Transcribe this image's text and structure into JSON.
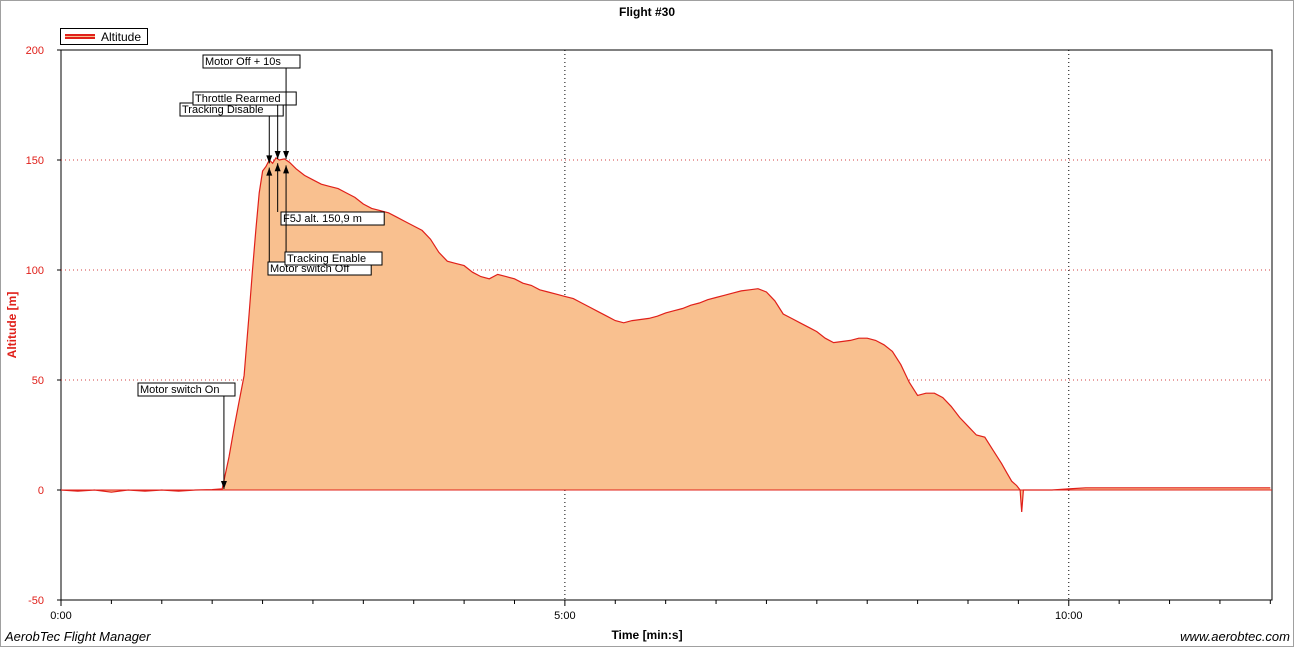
{
  "footer": {
    "app_name": "AerobTec Flight Manager",
    "website": "www.aerobtec.com"
  },
  "chart_data": {
    "type": "area",
    "title": "Flight #30",
    "xlabel": "Time [min:s]",
    "ylabel": "Altitude [m]",
    "legend": {
      "placement": "top-left",
      "entries": [
        "Altitude"
      ]
    },
    "grid": true,
    "xlim": [
      0,
      721
    ],
    "ylim": [
      -50,
      200
    ],
    "x_ticks": [
      {
        "value": 0,
        "label": "0:00"
      },
      {
        "value": 300,
        "label": "5:00"
      },
      {
        "value": 600,
        "label": "10:00"
      }
    ],
    "y_ticks": [
      -50,
      0,
      50,
      100,
      150,
      200
    ],
    "colors": {
      "line": "#e0201a",
      "fill": "#f9c08f",
      "grid": "#d04040"
    },
    "series": [
      {
        "name": "Altitude",
        "points": [
          [
            0,
            0
          ],
          [
            10,
            -0.5
          ],
          [
            20,
            0
          ],
          [
            30,
            -1
          ],
          [
            40,
            0
          ],
          [
            50,
            -0.5
          ],
          [
            60,
            0
          ],
          [
            70,
            -0.5
          ],
          [
            80,
            0
          ],
          [
            90,
            0.2
          ],
          [
            96,
            0.5
          ],
          [
            100,
            15
          ],
          [
            103,
            28
          ],
          [
            106,
            40
          ],
          [
            109,
            52
          ],
          [
            112,
            80
          ],
          [
            114,
            100
          ],
          [
            116,
            118
          ],
          [
            118,
            135
          ],
          [
            120,
            145
          ],
          [
            122,
            147
          ],
          [
            124,
            150
          ],
          [
            126,
            148.5
          ],
          [
            128,
            151
          ],
          [
            130,
            150
          ],
          [
            133,
            150.5
          ],
          [
            136,
            149
          ],
          [
            140,
            146
          ],
          [
            145,
            143
          ],
          [
            150,
            141
          ],
          [
            155,
            139
          ],
          [
            160,
            138
          ],
          [
            165,
            137
          ],
          [
            170,
            135
          ],
          [
            175,
            133
          ],
          [
            180,
            130
          ],
          [
            185,
            128
          ],
          [
            190,
            127
          ],
          [
            195,
            126
          ],
          [
            200,
            124
          ],
          [
            205,
            122
          ],
          [
            210,
            120
          ],
          [
            215,
            118
          ],
          [
            220,
            114
          ],
          [
            225,
            108
          ],
          [
            230,
            104
          ],
          [
            235,
            103
          ],
          [
            240,
            102
          ],
          [
            245,
            99
          ],
          [
            250,
            97
          ],
          [
            255,
            96
          ],
          [
            260,
            98
          ],
          [
            265,
            97
          ],
          [
            270,
            96
          ],
          [
            275,
            94
          ],
          [
            280,
            93
          ],
          [
            285,
            91
          ],
          [
            290,
            90
          ],
          [
            295,
            89
          ],
          [
            300,
            88
          ],
          [
            305,
            87
          ],
          [
            310,
            85
          ],
          [
            315,
            83
          ],
          [
            320,
            81
          ],
          [
            325,
            79
          ],
          [
            330,
            77
          ],
          [
            335,
            76
          ],
          [
            340,
            77
          ],
          [
            345,
            77.5
          ],
          [
            350,
            78
          ],
          [
            355,
            79
          ],
          [
            360,
            80.5
          ],
          [
            365,
            81.5
          ],
          [
            370,
            82.5
          ],
          [
            375,
            84
          ],
          [
            380,
            85
          ],
          [
            385,
            86.5
          ],
          [
            390,
            87.5
          ],
          [
            395,
            88.5
          ],
          [
            400,
            89.5
          ],
          [
            405,
            90.5
          ],
          [
            410,
            91
          ],
          [
            415,
            91.5
          ],
          [
            420,
            90
          ],
          [
            425,
            86
          ],
          [
            430,
            80
          ],
          [
            435,
            78
          ],
          [
            440,
            76
          ],
          [
            445,
            74
          ],
          [
            450,
            72
          ],
          [
            455,
            69
          ],
          [
            460,
            67
          ],
          [
            465,
            67.5
          ],
          [
            470,
            68
          ],
          [
            475,
            69
          ],
          [
            480,
            69
          ],
          [
            485,
            68
          ],
          [
            490,
            66
          ],
          [
            495,
            63
          ],
          [
            500,
            57
          ],
          [
            505,
            49
          ],
          [
            510,
            43
          ],
          [
            515,
            44
          ],
          [
            520,
            44
          ],
          [
            525,
            42
          ],
          [
            530,
            38
          ],
          [
            535,
            33
          ],
          [
            540,
            29
          ],
          [
            545,
            25
          ],
          [
            550,
            24
          ],
          [
            555,
            18
          ],
          [
            560,
            12
          ],
          [
            563,
            8
          ],
          [
            566,
            4
          ],
          [
            569,
            2
          ],
          [
            571,
            0
          ],
          [
            572,
            -10
          ],
          [
            573,
            0
          ],
          [
            580,
            0
          ],
          [
            590,
            0
          ],
          [
            600,
            0.5
          ],
          [
            610,
            1
          ],
          [
            620,
            1
          ],
          [
            630,
            1
          ],
          [
            640,
            1
          ],
          [
            650,
            1
          ],
          [
            660,
            1
          ],
          [
            670,
            1
          ],
          [
            680,
            1
          ],
          [
            690,
            1
          ],
          [
            700,
            1
          ],
          [
            710,
            1
          ],
          [
            720,
            1
          ]
        ]
      }
    ],
    "annotations": [
      {
        "label": "Motor switch On",
        "x": 97,
        "y": 0
      },
      {
        "label": "Tracking Disable",
        "x": 124,
        "y": 148
      },
      {
        "label": "Motor switch Off",
        "x": 124,
        "y": 147
      },
      {
        "label": "Throttle Rearmed",
        "x": 129,
        "y": 150
      },
      {
        "label": "F5J alt. 150,9 m",
        "x": 129,
        "y": 149
      },
      {
        "label": "Motor Off + 10s",
        "x": 134,
        "y": 150
      },
      {
        "label": "Tracking Enable",
        "x": 134,
        "y": 148
      }
    ]
  }
}
